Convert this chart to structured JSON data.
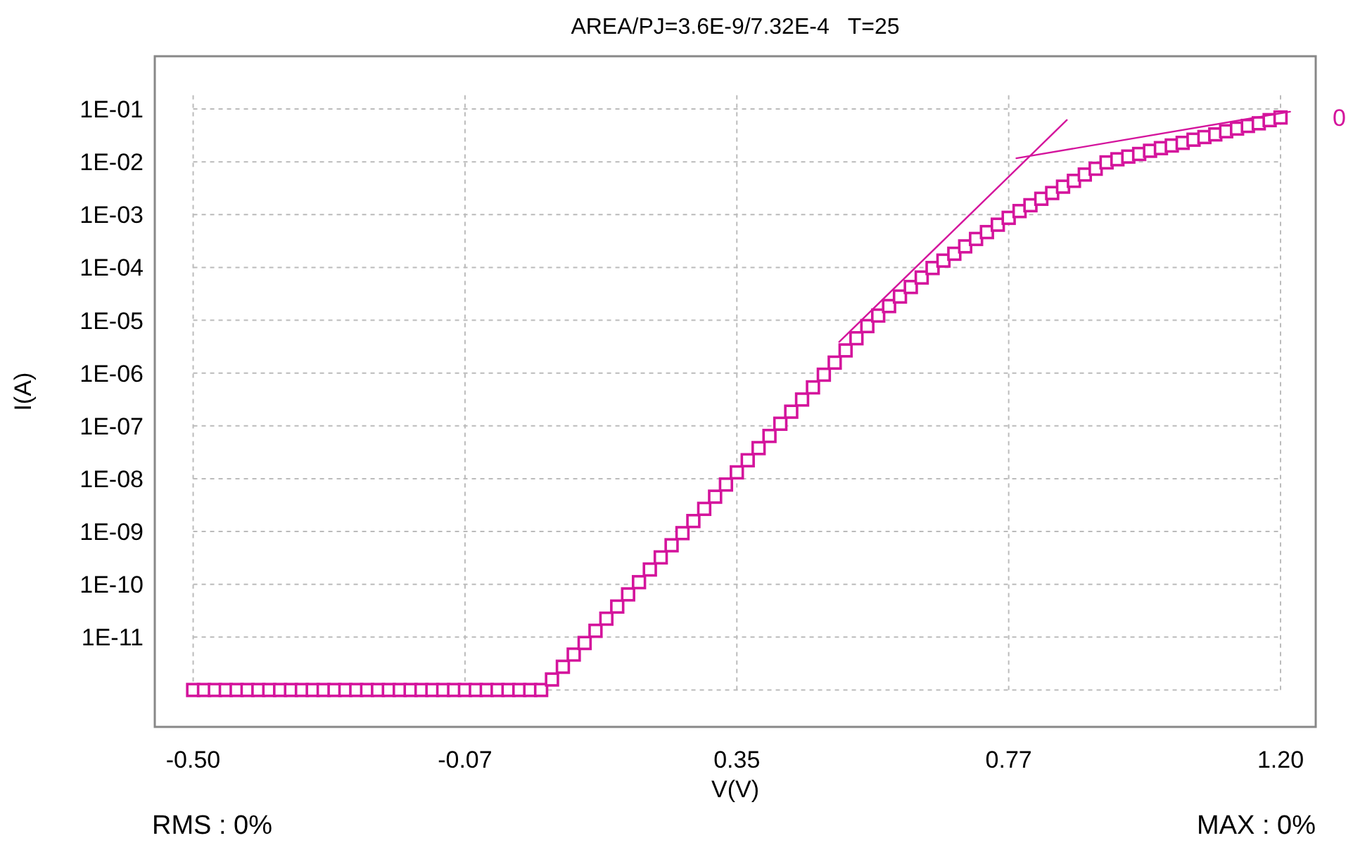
{
  "chart_data": {
    "type": "scatter",
    "title": "AREA/PJ=3.6E-9/7.32E-4   T=25",
    "xlabel": "V(V)",
    "ylabel": "I(A)",
    "log": "y",
    "grid": true,
    "xlim": [
      -0.56,
      1.255
    ],
    "ylim": [
      2e-13,
      1
    ],
    "xticks": [
      {
        "value": -0.5,
        "label": "-0.50"
      },
      {
        "value": -0.075,
        "label": "-0.07"
      },
      0.35,
      {
        "value": 0.775,
        "label": "0.77"
      },
      {
        "value": 1.2,
        "label": "1.20"
      }
    ],
    "yticks": [
      {
        "value": 1e-12,
        "label": null
      },
      {
        "value": 1e-11,
        "label": "1E-11"
      },
      {
        "value": 1e-10,
        "label": "1E-10"
      },
      {
        "value": 1e-09,
        "label": "1E-09"
      },
      {
        "value": 1e-08,
        "label": "1E-08"
      },
      {
        "value": 1e-07,
        "label": "1E-07"
      },
      {
        "value": 1e-06,
        "label": "1E-06"
      },
      {
        "value": 1e-05,
        "label": "1E-05"
      },
      {
        "value": 0.0001,
        "label": "1E-04"
      },
      {
        "value": 0.001,
        "label": "1E-03"
      },
      {
        "value": 0.01,
        "label": "1E-02"
      },
      {
        "value": 0.1,
        "label": "1E-01"
      }
    ],
    "annotations": [
      "RMS : 0%",
      "MAX : 0%"
    ],
    "series": [
      {
        "name": "0",
        "marker": "square",
        "color": "#d4149c",
        "x": [
          -0.5,
          -0.483,
          -0.466,
          -0.449,
          -0.432,
          -0.415,
          -0.398,
          -0.381,
          -0.364,
          -0.347,
          -0.33,
          -0.313,
          -0.296,
          -0.279,
          -0.262,
          -0.245,
          -0.228,
          -0.211,
          -0.194,
          -0.177,
          -0.16,
          -0.143,
          -0.126,
          -0.109,
          -0.092,
          -0.075,
          -0.058,
          -0.041,
          -0.024,
          -0.007,
          0.01,
          0.027,
          0.044,
          0.061,
          0.078,
          0.095,
          0.112,
          0.129,
          0.146,
          0.163,
          0.18,
          0.197,
          0.214,
          0.231,
          0.248,
          0.265,
          0.282,
          0.299,
          0.316,
          0.333,
          0.35,
          0.367,
          0.384,
          0.401,
          0.418,
          0.435,
          0.452,
          0.469,
          0.486,
          0.503,
          0.52,
          0.537,
          0.554,
          0.571,
          0.588,
          0.605,
          0.622,
          0.639,
          0.656,
          0.673,
          0.69,
          0.707,
          0.724,
          0.741,
          0.758,
          0.775,
          0.792,
          0.809,
          0.826,
          0.843,
          0.86,
          0.877,
          0.894,
          0.911,
          0.928,
          0.945,
          0.962,
          0.979,
          0.996,
          1.013,
          1.03,
          1.047,
          1.064,
          1.081,
          1.098,
          1.115,
          1.132,
          1.149,
          1.166,
          1.183,
          1.2
        ],
        "values": [
          1e-12,
          1e-12,
          1e-12,
          1e-12,
          1e-12,
          1e-12,
          1e-12,
          1e-12,
          1e-12,
          1e-12,
          1e-12,
          1e-12,
          1e-12,
          1e-12,
          1e-12,
          1e-12,
          1e-12,
          1e-12,
          1e-12,
          1e-12,
          1e-12,
          1e-12,
          1e-12,
          1e-12,
          1e-12,
          1e-12,
          1e-12,
          1e-12,
          1e-12,
          1e-12,
          1e-12,
          1e-12,
          1e-12,
          1.58e-12,
          2.75e-12,
          4.68e-12,
          7.76e-12,
          1.32e-11,
          2.24e-11,
          3.8e-11,
          6.46e-11,
          1.1e-10,
          1.91e-10,
          3.24e-10,
          5.5e-10,
          9.33e-10,
          1.58e-09,
          2.69e-09,
          4.57e-09,
          7.76e-09,
          1.32e-08,
          2.24e-08,
          3.8e-08,
          6.46e-08,
          1.1e-07,
          1.86e-07,
          3.16e-07,
          5.37e-07,
          9.33e-07,
          1.58e-06,
          2.69e-06,
          4.57e-06,
          7.76e-06,
          1.23e-05,
          1.86e-05,
          2.82e-05,
          4.27e-05,
          6.46e-05,
          9.77e-05,
          0.000135,
          0.000182,
          0.000251,
          0.000347,
          0.000468,
          0.000646,
          0.000871,
          0.00117,
          0.00151,
          0.002,
          0.00257,
          0.00339,
          0.00437,
          0.00575,
          0.00741,
          0.00977,
          0.0112,
          0.0126,
          0.0141,
          0.0162,
          0.0182,
          0.0204,
          0.0229,
          0.0263,
          0.0295,
          0.0331,
          0.038,
          0.0427,
          0.0479,
          0.0537,
          0.0617,
          0.0692
        ]
      },
      {
        "type": "line",
        "marker": "none",
        "color": "#d4149c",
        "x": [
          0.51,
          0.866
        ],
        "values": [
          3.9e-06,
          0.062
        ]
      },
      {
        "type": "line",
        "marker": "none",
        "color": "#d4149c",
        "x": [
          0.787,
          1.215
        ],
        "values": [
          0.0117,
          0.089
        ]
      }
    ]
  }
}
